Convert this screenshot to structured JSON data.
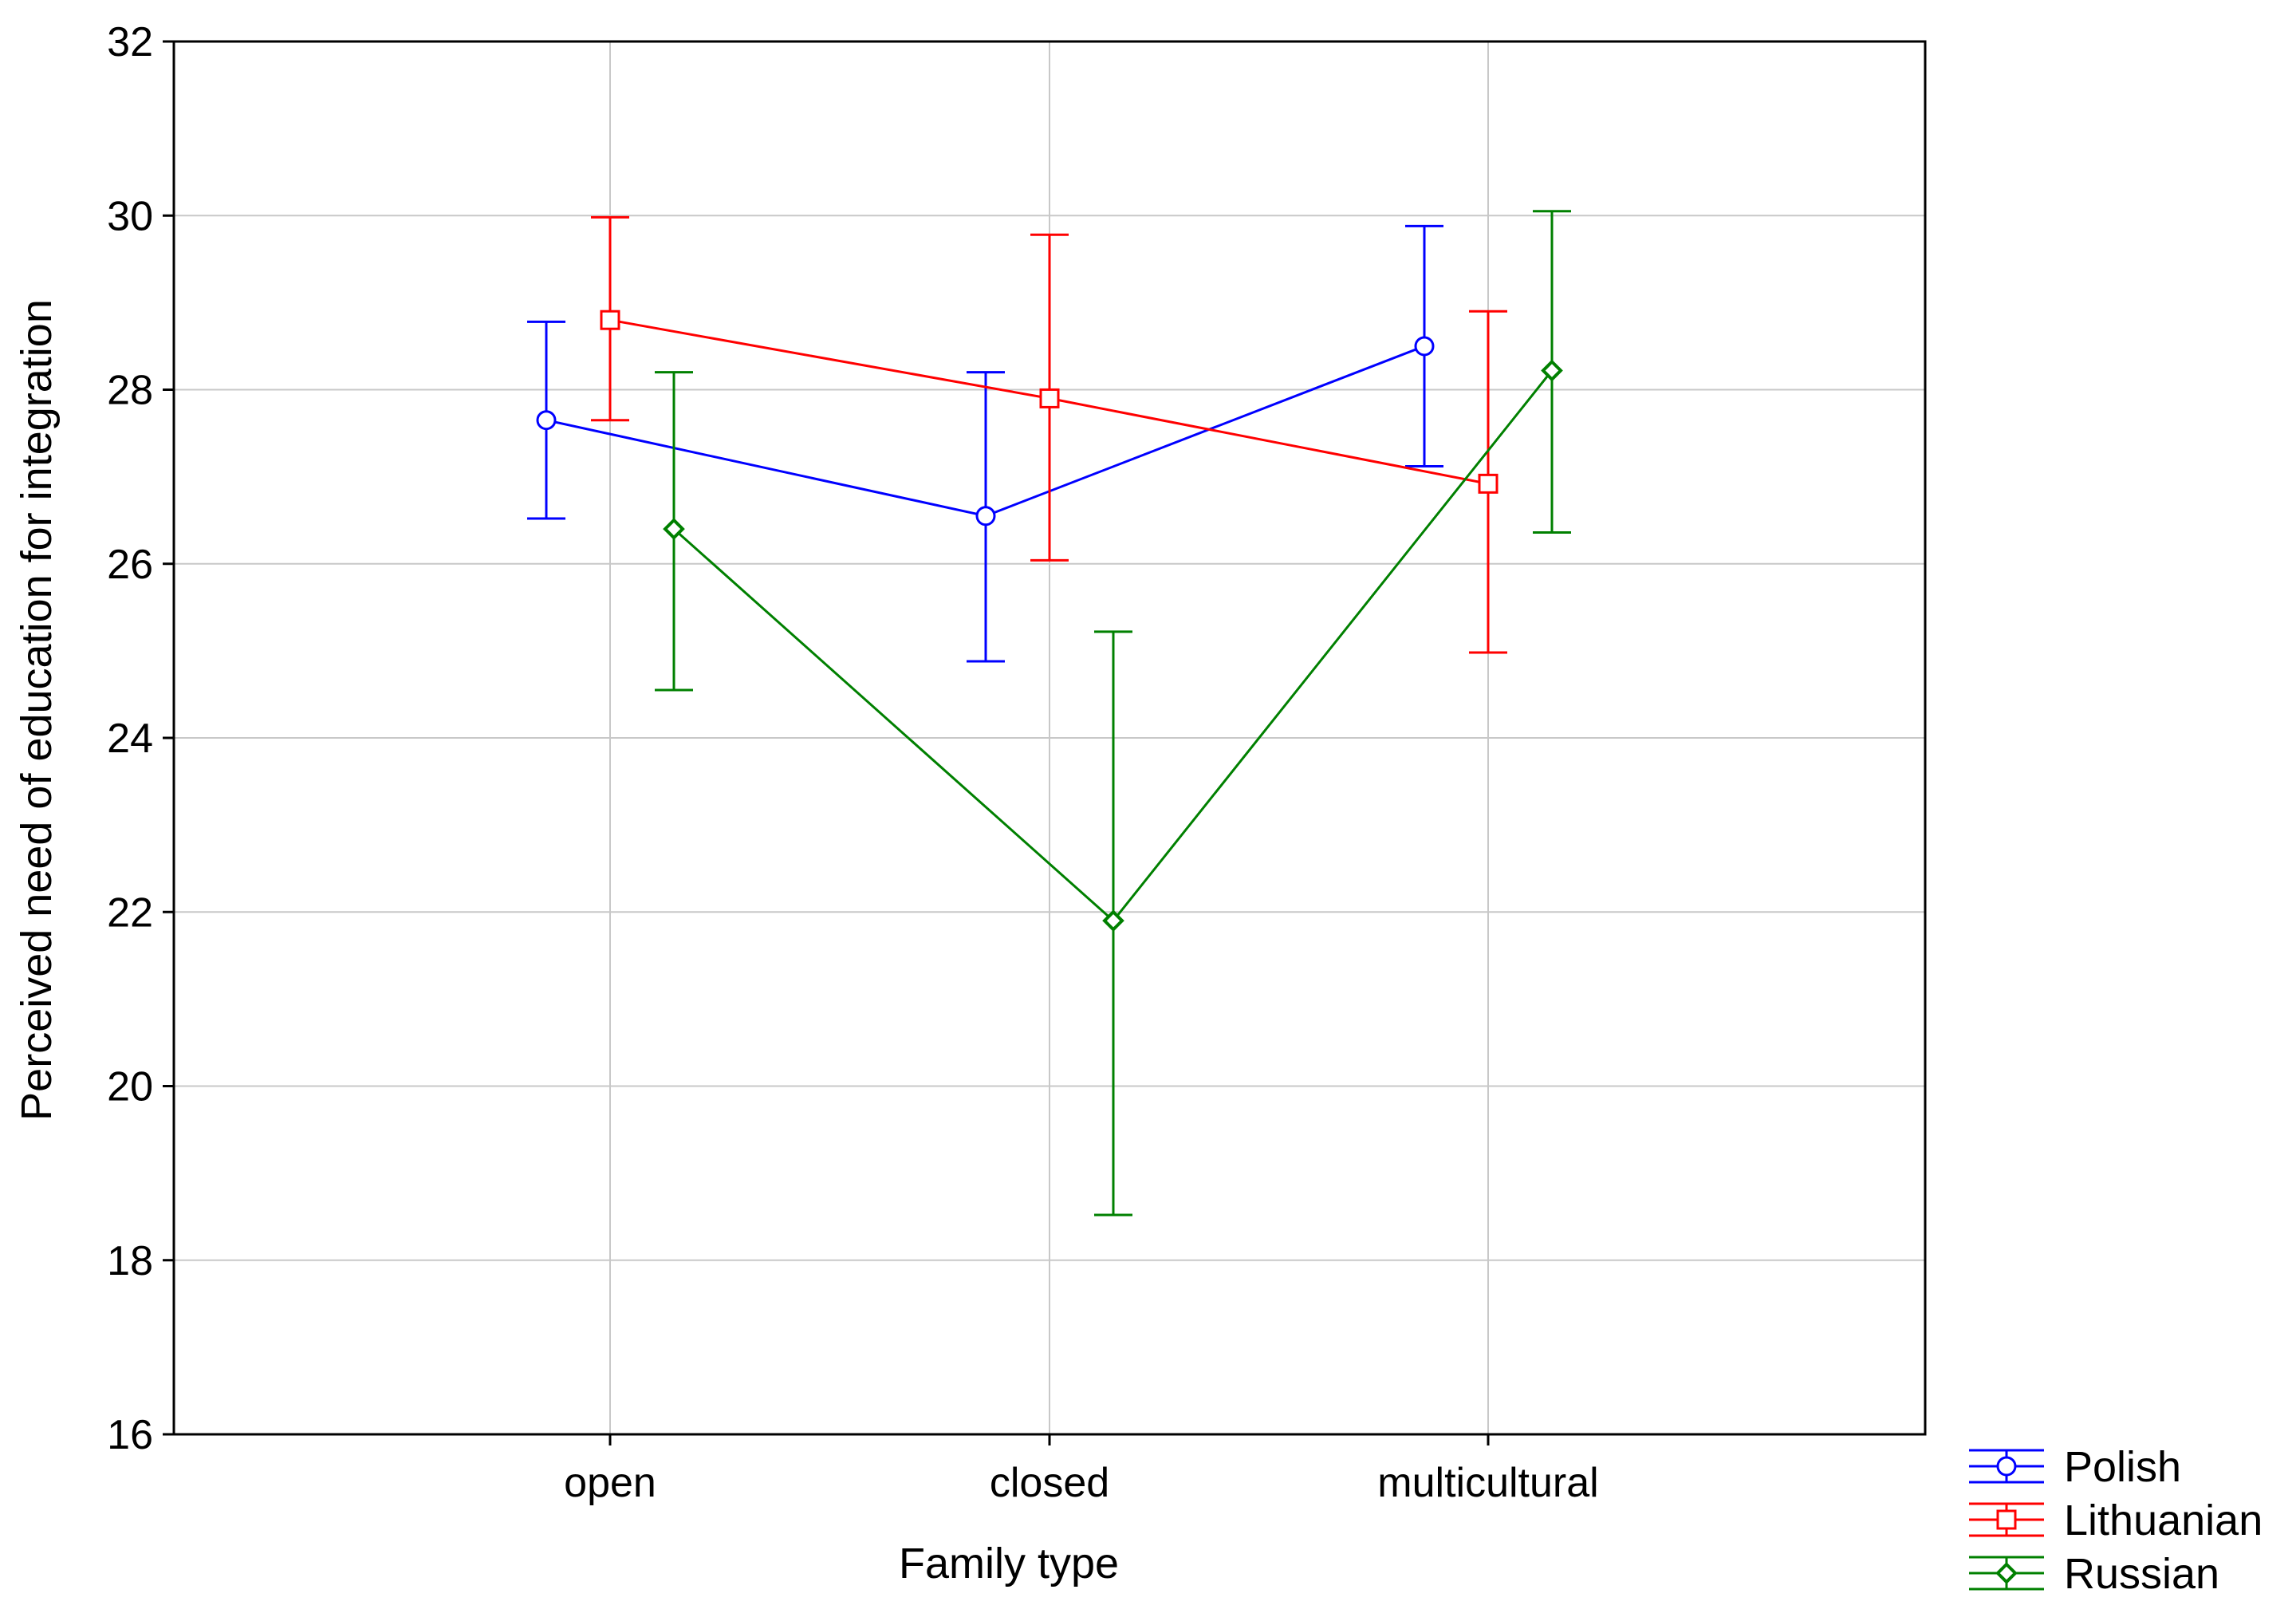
{
  "chart_data": {
    "type": "line",
    "title": "",
    "xlabel": "Family type",
    "ylabel": "Perceived need of education for integration",
    "categories": [
      "open",
      "closed",
      "multicultural"
    ],
    "ylim": [
      16,
      32
    ],
    "yticks": [
      16,
      18,
      20,
      22,
      24,
      26,
      28,
      30,
      32
    ],
    "grid": true,
    "legend_position": "bottom-right",
    "error_bars": true,
    "series": [
      {
        "name": "Polish",
        "color": "#0000ff",
        "marker": "circle",
        "values": [
          27.65,
          26.55,
          28.5
        ],
        "lower": [
          26.52,
          24.88,
          27.12
        ],
        "upper": [
          28.78,
          28.2,
          29.88
        ]
      },
      {
        "name": "Lithuanian",
        "color": "#ff0000",
        "marker": "square",
        "values": [
          28.8,
          27.9,
          26.92
        ],
        "lower": [
          27.65,
          26.04,
          24.98
        ],
        "upper": [
          29.98,
          29.78,
          28.9
        ]
      },
      {
        "name": "Russian",
        "color": "#008000",
        "marker": "diamond",
        "values": [
          26.4,
          21.9,
          28.22
        ],
        "lower": [
          24.55,
          18.52,
          26.36
        ],
        "upper": [
          28.2,
          25.22,
          30.05
        ]
      }
    ]
  }
}
